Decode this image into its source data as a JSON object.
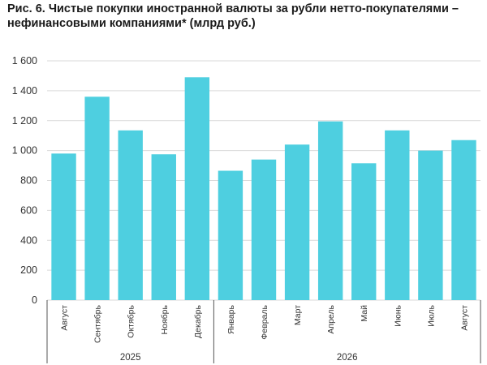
{
  "chart_data": {
    "type": "bar",
    "title": "Рис. 6. Чистые покупки иностранной валюты за рубли нетто-покупателями – нефинансовыми компаниями* (млрд руб.)",
    "categories": [
      "Август",
      "Сентябрь",
      "Октябрь",
      "Ноябрь",
      "Декабрь",
      "Январь",
      "Февраль",
      "Март",
      "Апрель",
      "Май",
      "Июнь",
      "Июль",
      "Август"
    ],
    "groups": [
      {
        "label": "2025",
        "start": 0,
        "end": 4
      },
      {
        "label": "2026",
        "start": 5,
        "end": 12
      }
    ],
    "values": [
      980,
      1360,
      1135,
      975,
      1490,
      865,
      940,
      1040,
      1195,
      915,
      1135,
      1000,
      1070
    ],
    "ylim": [
      0,
      1600
    ],
    "yticks": [
      0,
      200,
      400,
      600,
      800,
      1000,
      1200,
      1400,
      1600
    ],
    "ytick_labels": [
      "0",
      "200",
      "400",
      "600",
      "800",
      "1 000",
      "1 200",
      "1 400",
      "1 600"
    ],
    "grid": true,
    "bar_color": "#4ecfe0",
    "grid_color": "#d9d9d9"
  }
}
